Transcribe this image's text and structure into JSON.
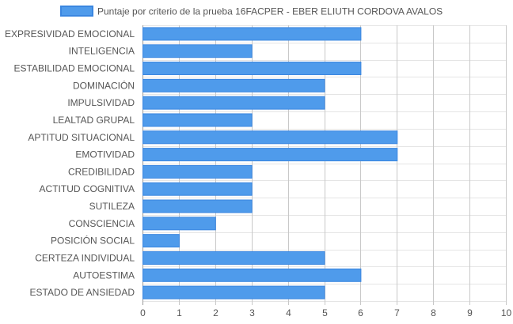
{
  "chart_data": {
    "type": "bar",
    "orientation": "horizontal",
    "title": "",
    "xlabel": "",
    "ylabel": "",
    "categories": [
      "EXPRESIVIDAD EMOCIONAL",
      "INTELIGENCIA",
      "ESTABILIDAD EMOCIONAL",
      "DOMINACIÓN",
      "IMPULSIVIDAD",
      "LEALTAD GRUPAL",
      "APTITUD SITUACIONAL",
      "EMOTIVIDAD",
      "CREDIBILIDAD",
      "ACTITUD COGNITIVA",
      "SUTILEZA",
      "CONSCIENCIA",
      "POSICIÓN SOCIAL",
      "CERTEZA INDIVIDUAL",
      "AUTOESTIMA",
      "ESTADO DE ANSIEDAD"
    ],
    "series": [
      {
        "name": "Puntaje por criterio de la prueba 16FACPER - EBER ELIUTH CORDOVA AVALOS",
        "values": [
          6,
          3,
          6,
          5,
          5,
          3,
          7,
          7,
          3,
          3,
          3,
          2,
          1,
          5,
          6,
          5
        ],
        "color": "#4f9beb",
        "border_color": "#3a86e0"
      }
    ],
    "xlim": [
      0,
      10
    ],
    "xticks": [
      "0",
      "1",
      "2",
      "3",
      "4",
      "5",
      "6",
      "7",
      "8",
      "9",
      "10"
    ],
    "grid": true,
    "legend": "top"
  }
}
